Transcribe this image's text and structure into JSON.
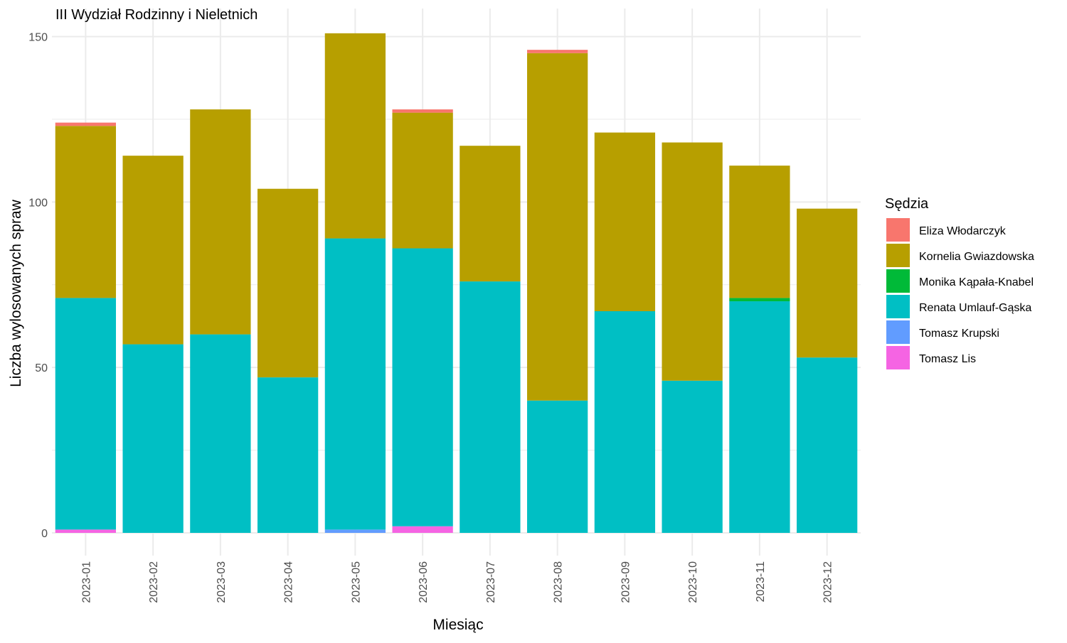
{
  "chart_data": {
    "type": "bar",
    "stacked": true,
    "title": "III Wydział Rodzinny i Nieletnich",
    "xlabel": "Miesiąc",
    "ylabel": "Liczba wylosowanych spraw",
    "ylim": [
      0,
      157
    ],
    "yticks": [
      0,
      50,
      100,
      150
    ],
    "grid": true,
    "legend_title": "Sędzia",
    "legend_position": "right",
    "categories": [
      "2023-01",
      "2023-02",
      "2023-03",
      "2023-04",
      "2023-05",
      "2023-06",
      "2023-07",
      "2023-08",
      "2023-09",
      "2023-10",
      "2023-11",
      "2023-12"
    ],
    "series": [
      {
        "name": "Tomasz Lis",
        "color": "#F564E3",
        "values": [
          1,
          0,
          0,
          0,
          0,
          2,
          0,
          0,
          0,
          0,
          0,
          0
        ]
      },
      {
        "name": "Tomasz Krupski",
        "color": "#619CFF",
        "values": [
          0,
          0,
          0,
          0,
          1,
          0,
          0,
          0,
          0,
          0,
          0,
          0
        ]
      },
      {
        "name": "Renata Umlauf-Gąska",
        "color": "#00BFC4",
        "values": [
          70,
          57,
          60,
          47,
          88,
          84,
          76,
          40,
          67,
          46,
          70,
          53
        ]
      },
      {
        "name": "Monika Kąpała-Knabel",
        "color": "#00BA38",
        "values": [
          0,
          0,
          0,
          0,
          0,
          0,
          0,
          0,
          0,
          0,
          1,
          0
        ]
      },
      {
        "name": "Kornelia Gwiazdowska",
        "color": "#B79F00",
        "values": [
          52,
          57,
          68,
          57,
          62,
          41,
          41,
          105,
          54,
          72,
          40,
          45
        ]
      },
      {
        "name": "Eliza Włodarczyk",
        "color": "#F8766D",
        "values": [
          1,
          0,
          0,
          0,
          0,
          1,
          0,
          1,
          0,
          0,
          0,
          0
        ]
      }
    ],
    "legend_order": [
      "Eliza Włodarczyk",
      "Kornelia Gwiazdowska",
      "Monika Kąpała-Knabel",
      "Renata Umlauf-Gąska",
      "Tomasz Krupski",
      "Tomasz Lis"
    ]
  }
}
